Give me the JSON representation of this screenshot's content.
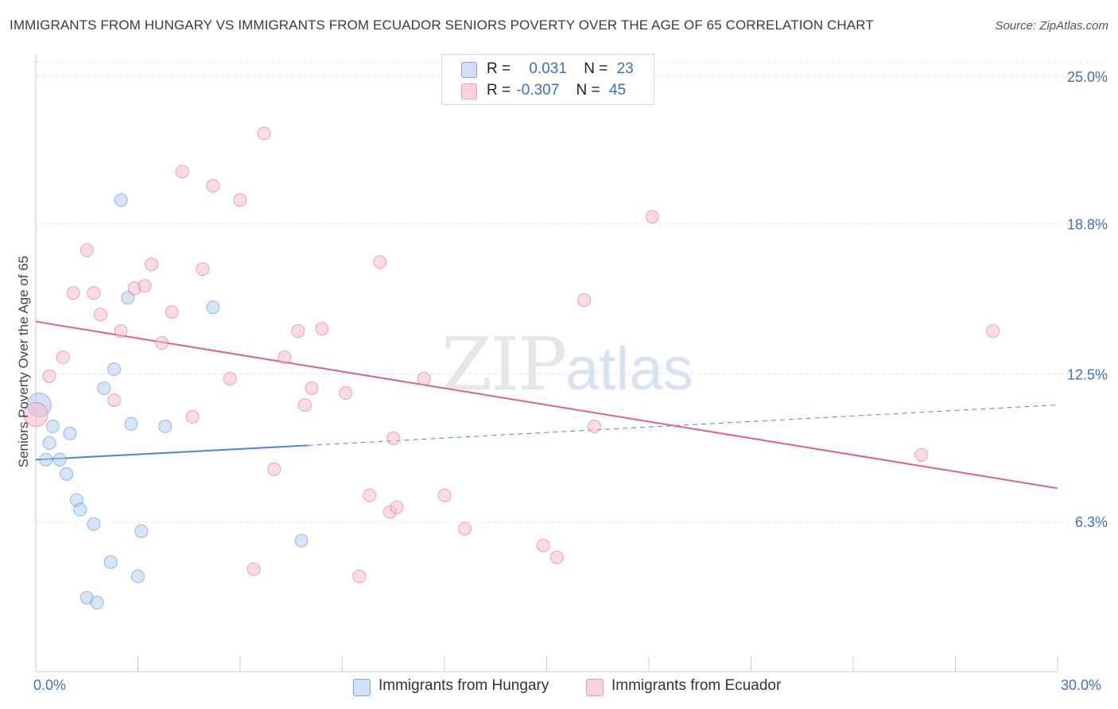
{
  "title": "IMMIGRANTS FROM HUNGARY VS IMMIGRANTS FROM ECUADOR SENIORS POVERTY OVER THE AGE OF 65 CORRELATION CHART",
  "source": "Source: ZipAtlas.com",
  "watermark": {
    "zip": "ZIP",
    "atlas": "atlas"
  },
  "legend": {
    "rows": [
      {
        "r_label": "R =",
        "r_value": "0.031",
        "n_label": "N =",
        "n_value": "23",
        "color": "#aecbf2"
      },
      {
        "r_label": "R =",
        "r_value": "-0.307",
        "n_label": "N =",
        "n_value": "45",
        "color": "#f7b8cb"
      }
    ]
  },
  "chart_data": {
    "type": "scatter",
    "ylabel": "Seniors Poverty Over the Age of 65",
    "xlim": [
      0,
      30
    ],
    "ylim": [
      0,
      25.6
    ],
    "x_tick_labels": [
      "0.0%",
      "30.0%"
    ],
    "y_ticks": [
      6.3,
      12.5,
      18.8,
      25.0
    ],
    "y_tick_labels": [
      "6.3%",
      "12.5%",
      "18.8%",
      "25.0%"
    ],
    "series": [
      {
        "name": "Immigrants from Hungary",
        "color": "#4a86d4",
        "fill": "#aecbf2",
        "points": [
          [
            0.1,
            11.2
          ],
          [
            0.3,
            8.9
          ],
          [
            0.4,
            9.6
          ],
          [
            0.5,
            10.3
          ],
          [
            0.7,
            8.9
          ],
          [
            0.9,
            8.3
          ],
          [
            1.0,
            10.0
          ],
          [
            1.2,
            7.2
          ],
          [
            1.3,
            6.8
          ],
          [
            1.5,
            3.1
          ],
          [
            1.7,
            6.2
          ],
          [
            1.8,
            2.9
          ],
          [
            2.0,
            11.9
          ],
          [
            2.2,
            4.6
          ],
          [
            2.3,
            12.7
          ],
          [
            2.5,
            19.8
          ],
          [
            2.7,
            15.7
          ],
          [
            2.8,
            10.4
          ],
          [
            3.0,
            4.0
          ],
          [
            3.1,
            5.9
          ],
          [
            3.8,
            10.3
          ],
          [
            5.2,
            15.3
          ],
          [
            7.8,
            5.5
          ]
        ],
        "trend": {
          "solid_x": [
            0,
            8
          ],
          "solid_y": [
            8.9,
            9.5
          ],
          "dash_x": [
            8,
            30
          ],
          "dash_y": [
            9.5,
            11.2
          ]
        }
      },
      {
        "name": "Immigrants from Ecuador",
        "color": "#e0608a",
        "fill": "#f7b8cb",
        "points": [
          [
            0.0,
            10.8
          ],
          [
            0.4,
            12.4
          ],
          [
            0.8,
            13.2
          ],
          [
            1.1,
            15.9
          ],
          [
            1.5,
            17.7
          ],
          [
            1.7,
            15.9
          ],
          [
            1.9,
            15.0
          ],
          [
            2.3,
            11.4
          ],
          [
            2.5,
            14.3
          ],
          [
            2.9,
            16.1
          ],
          [
            3.2,
            16.2
          ],
          [
            3.4,
            17.1
          ],
          [
            3.7,
            13.8
          ],
          [
            4.0,
            15.1
          ],
          [
            4.3,
            21.0
          ],
          [
            4.6,
            10.7
          ],
          [
            4.9,
            16.9
          ],
          [
            5.2,
            20.4
          ],
          [
            5.7,
            12.3
          ],
          [
            6.0,
            19.8
          ],
          [
            6.4,
            4.3
          ],
          [
            6.7,
            22.6
          ],
          [
            7.0,
            8.5
          ],
          [
            7.3,
            13.2
          ],
          [
            7.7,
            14.3
          ],
          [
            7.9,
            11.2
          ],
          [
            8.1,
            11.9
          ],
          [
            8.4,
            14.4
          ],
          [
            9.1,
            11.7
          ],
          [
            9.5,
            4.0
          ],
          [
            9.8,
            7.4
          ],
          [
            10.1,
            17.2
          ],
          [
            10.4,
            6.7
          ],
          [
            10.6,
            6.9
          ],
          [
            10.5,
            9.8
          ],
          [
            11.4,
            12.3
          ],
          [
            12.0,
            7.4
          ],
          [
            12.6,
            6.0
          ],
          [
            14.9,
            5.3
          ],
          [
            15.3,
            4.8
          ],
          [
            16.1,
            15.6
          ],
          [
            16.4,
            10.3
          ],
          [
            18.1,
            19.1
          ],
          [
            26.0,
            9.1
          ],
          [
            28.1,
            14.3
          ]
        ],
        "trend": {
          "solid_x": [
            0,
            30
          ],
          "solid_y": [
            14.7,
            7.7
          ]
        }
      }
    ]
  }
}
